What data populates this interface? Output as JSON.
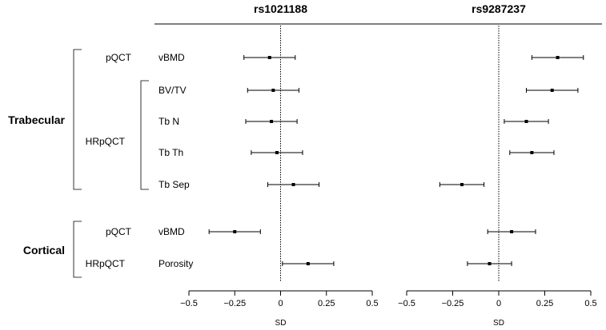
{
  "chart_data": {
    "type": "forest",
    "xlabel": "SD",
    "xlim": [
      -0.5,
      0.5
    ],
    "xticks": [
      -0.5,
      -0.25,
      0,
      0.25,
      0.5
    ],
    "xtick_labels": [
      "−0.5",
      "−0.25",
      "0",
      "0.25",
      "0.5"
    ],
    "rows": [
      "vBMD",
      "BV/TV",
      "Tb N",
      "Tb Th",
      "Tb Sep",
      "vBMD",
      "Porosity"
    ],
    "groups": [
      {
        "label": "Trabecular",
        "subgroups": [
          {
            "label": "pQCT",
            "rows": [
              0
            ]
          },
          {
            "label": "HRpQCT",
            "rows": [
              1,
              2,
              3,
              4
            ]
          }
        ]
      },
      {
        "label": "Cortical",
        "subgroups": [
          {
            "label": "pQCT",
            "rows": [
              5
            ]
          },
          {
            "label": "HRpQCT",
            "rows": [
              6
            ]
          }
        ]
      }
    ],
    "panels": [
      {
        "title": "rs1021188",
        "estimates": [
          -0.06,
          -0.04,
          -0.05,
          -0.02,
          0.07,
          -0.25,
          0.15
        ],
        "lower": [
          -0.2,
          -0.18,
          -0.19,
          -0.16,
          -0.07,
          -0.39,
          0.01
        ],
        "upper": [
          0.08,
          0.1,
          0.09,
          0.12,
          0.21,
          -0.11,
          0.29
        ]
      },
      {
        "title": "rs9287237",
        "estimates": [
          0.32,
          0.29,
          0.15,
          0.18,
          -0.2,
          0.07,
          -0.05
        ],
        "lower": [
          0.18,
          0.15,
          0.03,
          0.06,
          -0.32,
          -0.06,
          -0.17
        ],
        "upper": [
          0.46,
          0.43,
          0.27,
          0.3,
          -0.08,
          0.2,
          0.07
        ]
      }
    ]
  }
}
